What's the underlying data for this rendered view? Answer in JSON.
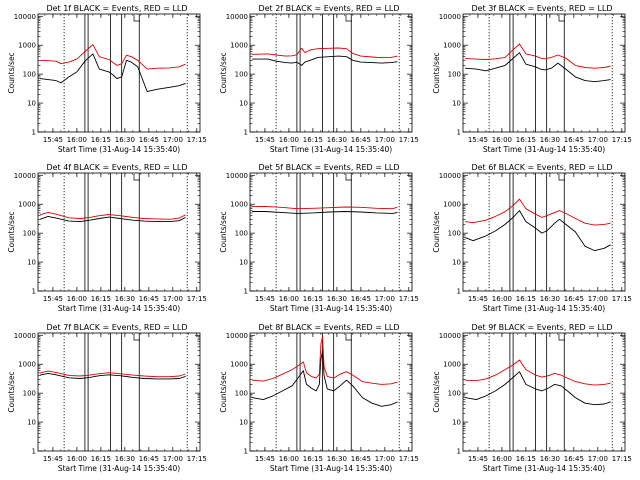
{
  "figure": {
    "ylabel": "Counts/sec",
    "xlabel": "Start Time (31-Aug-14 15:35:40)",
    "x_ticks": [
      "15:45",
      "16:00",
      "16:15",
      "16:30",
      "16:45",
      "17:00",
      "17:15"
    ],
    "y_ticks": [
      "1",
      "10",
      "100",
      "1000",
      "10000"
    ],
    "colors": {
      "events": "#000000",
      "lld": "#e00000",
      "axes": "#000000"
    }
  },
  "chart_data": [
    {
      "type": "line",
      "title": "Det 1f BLACK = Events, RED = LLD",
      "x_range": [
        "15:35:40",
        "17:17:00"
      ],
      "ylim": [
        1,
        12000
      ],
      "log_scale_y": true,
      "markers_solid": [
        "16:05",
        "16:07",
        "16:21",
        "16:28",
        "16:39"
      ],
      "markers_dotted": [
        "15:52",
        "17:09"
      ],
      "series": [
        {
          "name": "Events",
          "x": [
            "15:37",
            "15:47",
            "15:50",
            "15:55",
            "16:00",
            "16:05",
            "16:10",
            "16:14",
            "16:20",
            "16:23",
            "16:25",
            "16:28",
            "16:31",
            "16:34",
            "16:38",
            "16:44",
            "16:50",
            "16:58",
            "17:04",
            "17:08"
          ],
          "values": [
            70,
            60,
            50,
            80,
            120,
            280,
            500,
            150,
            120,
            90,
            70,
            80,
            300,
            260,
            180,
            25,
            30,
            35,
            40,
            48
          ]
        },
        {
          "name": "LLD",
          "x": [
            "15:37",
            "15:47",
            "15:50",
            "15:55",
            "16:00",
            "16:05",
            "16:10",
            "16:14",
            "16:20",
            "16:23",
            "16:25",
            "16:28",
            "16:31",
            "16:34",
            "16:38",
            "16:44",
            "16:50",
            "16:58",
            "17:04",
            "17:08"
          ],
          "values": [
            300,
            280,
            230,
            260,
            330,
            600,
            1050,
            400,
            320,
            240,
            200,
            230,
            450,
            400,
            300,
            150,
            160,
            165,
            180,
            220
          ]
        }
      ]
    },
    {
      "type": "line",
      "title": "Det 2f BLACK = Events, RED = LLD",
      "x_range": [
        "15:35:40",
        "17:17:00"
      ],
      "ylim": [
        1,
        12000
      ],
      "log_scale_y": true,
      "markers_solid": [
        "16:05",
        "16:07",
        "16:21",
        "16:28",
        "16:39"
      ],
      "markers_dotted": [
        "15:52",
        "17:09"
      ],
      "series": [
        {
          "name": "Events",
          "x": [
            "15:37",
            "15:47",
            "15:52",
            "15:58",
            "16:02",
            "16:05",
            "16:08",
            "16:10",
            "16:14",
            "16:18",
            "16:25",
            "16:31",
            "16:36",
            "16:40",
            "16:45",
            "16:52",
            "16:58",
            "17:04",
            "17:08"
          ],
          "values": [
            330,
            330,
            280,
            250,
            240,
            260,
            200,
            260,
            310,
            380,
            400,
            420,
            400,
            300,
            260,
            250,
            240,
            250,
            270
          ]
        },
        {
          "name": "LLD",
          "x": [
            "15:37",
            "15:47",
            "15:52",
            "15:58",
            "16:02",
            "16:05",
            "16:08",
            "16:10",
            "16:14",
            "16:18",
            "16:25",
            "16:31",
            "16:36",
            "16:40",
            "16:45",
            "16:52",
            "16:58",
            "17:04",
            "17:08"
          ],
          "values": [
            480,
            500,
            460,
            420,
            430,
            470,
            780,
            560,
            700,
            760,
            780,
            800,
            760,
            520,
            420,
            390,
            370,
            380,
            420
          ]
        }
      ]
    },
    {
      "type": "line",
      "title": "Det 3f BLACK = Events, RED = LLD",
      "x_range": [
        "15:35:40",
        "17:17:00"
      ],
      "ylim": [
        1,
        12000
      ],
      "log_scale_y": true,
      "markers_solid": [
        "16:05",
        "16:07",
        "16:21",
        "16:28",
        "16:39"
      ],
      "markers_dotted": [
        "15:52",
        "17:09"
      ],
      "series": [
        {
          "name": "Events",
          "x": [
            "15:37",
            "15:44",
            "15:50",
            "15:56",
            "16:02",
            "16:07",
            "16:11",
            "16:15",
            "16:21",
            "16:24",
            "16:27",
            "16:31",
            "16:35",
            "16:40",
            "16:46",
            "16:52",
            "16:58",
            "17:04",
            "17:08"
          ],
          "values": [
            160,
            150,
            130,
            160,
            200,
            350,
            550,
            220,
            180,
            150,
            140,
            160,
            240,
            150,
            80,
            60,
            55,
            60,
            65
          ]
        },
        {
          "name": "LLD",
          "x": [
            "15:37",
            "15:44",
            "15:50",
            "15:56",
            "16:02",
            "16:07",
            "16:11",
            "16:15",
            "16:21",
            "16:24",
            "16:27",
            "16:31",
            "16:35",
            "16:40",
            "16:46",
            "16:52",
            "16:58",
            "17:04",
            "17:08"
          ],
          "values": [
            350,
            330,
            320,
            340,
            380,
            700,
            1100,
            500,
            420,
            360,
            340,
            380,
            460,
            360,
            200,
            170,
            160,
            170,
            190
          ]
        }
      ]
    },
    {
      "type": "line",
      "title": "Det 4f BLACK = Events, RED = LLD",
      "x_range": [
        "15:35:40",
        "17:17:00"
      ],
      "ylim": [
        1,
        12000
      ],
      "log_scale_y": true,
      "markers_solid": [
        "16:05",
        "16:07",
        "16:21",
        "16:28",
        "16:39"
      ],
      "markers_dotted": [
        "15:52",
        "17:09"
      ],
      "series": [
        {
          "name": "Events",
          "x": [
            "15:37",
            "15:42",
            "15:47",
            "15:55",
            "16:02",
            "16:08",
            "16:14",
            "16:20",
            "16:27",
            "16:35",
            "16:42",
            "16:50",
            "16:58",
            "17:04",
            "17:08"
          ],
          "values": [
            300,
            380,
            330,
            260,
            250,
            280,
            320,
            360,
            320,
            280,
            260,
            250,
            250,
            270,
            350
          ]
        },
        {
          "name": "LLD",
          "x": [
            "15:37",
            "15:42",
            "15:47",
            "15:55",
            "16:02",
            "16:08",
            "16:14",
            "16:20",
            "16:27",
            "16:35",
            "16:42",
            "16:50",
            "16:58",
            "17:04",
            "17:08"
          ],
          "values": [
            430,
            520,
            450,
            340,
            320,
            350,
            400,
            440,
            400,
            350,
            320,
            310,
            300,
            330,
            430
          ]
        }
      ]
    },
    {
      "type": "line",
      "title": "Det 5f BLACK = Events, RED = LLD",
      "x_range": [
        "15:35:40",
        "17:17:00"
      ],
      "ylim": [
        1,
        12000
      ],
      "log_scale_y": true,
      "markers_solid": [
        "16:05",
        "16:07",
        "16:21",
        "16:28",
        "16:39"
      ],
      "markers_dotted": [
        "15:52",
        "17:09"
      ],
      "series": [
        {
          "name": "Events",
          "x": [
            "15:37",
            "15:45",
            "15:55",
            "16:05",
            "16:15",
            "16:25",
            "16:35",
            "16:45",
            "16:55",
            "17:05",
            "17:08"
          ],
          "values": [
            560,
            560,
            520,
            480,
            500,
            540,
            560,
            540,
            500,
            480,
            520
          ]
        },
        {
          "name": "LLD",
          "x": [
            "15:37",
            "15:45",
            "15:55",
            "16:05",
            "16:15",
            "16:25",
            "16:35",
            "16:45",
            "16:55",
            "17:05",
            "17:08"
          ],
          "values": [
            830,
            840,
            780,
            700,
            720,
            760,
            800,
            780,
            720,
            700,
            800
          ]
        }
      ]
    },
    {
      "type": "line",
      "title": "Det 6f BLACK = Events, RED = LLD",
      "x_range": [
        "15:35:40",
        "17:17:00"
      ],
      "ylim": [
        1,
        12000
      ],
      "log_scale_y": true,
      "markers_solid": [
        "16:05",
        "16:07",
        "16:21",
        "16:28",
        "16:39"
      ],
      "markers_dotted": [
        "15:52",
        "17:09"
      ],
      "series": [
        {
          "name": "Events",
          "x": [
            "15:37",
            "15:42",
            "15:50",
            "15:56",
            "16:02",
            "16:07",
            "16:11",
            "16:15",
            "16:21",
            "16:25",
            "16:28",
            "16:33",
            "16:36",
            "16:40",
            "16:46",
            "16:52",
            "16:58",
            "17:04",
            "17:08"
          ],
          "values": [
            70,
            55,
            80,
            120,
            200,
            350,
            600,
            250,
            150,
            100,
            120,
            220,
            300,
            200,
            110,
            35,
            25,
            30,
            40
          ]
        },
        {
          "name": "LLD",
          "x": [
            "15:37",
            "15:42",
            "15:50",
            "15:56",
            "16:02",
            "16:07",
            "16:11",
            "16:15",
            "16:21",
            "16:25",
            "16:28",
            "16:33",
            "16:36",
            "16:40",
            "16:46",
            "16:52",
            "16:58",
            "17:04",
            "17:08"
          ],
          "values": [
            250,
            230,
            280,
            380,
            550,
            900,
            1500,
            700,
            450,
            350,
            400,
            520,
            600,
            480,
            320,
            220,
            190,
            200,
            220
          ]
        }
      ]
    },
    {
      "type": "line",
      "title": "Det 7f BLACK = Events, RED = LLD",
      "x_range": [
        "15:35:40",
        "17:17:00"
      ],
      "ylim": [
        1,
        12000
      ],
      "log_scale_y": true,
      "markers_solid": [
        "16:05",
        "16:07",
        "16:21",
        "16:28",
        "16:39"
      ],
      "markers_dotted": [
        "15:52",
        "17:09"
      ],
      "series": [
        {
          "name": "Events",
          "x": [
            "15:37",
            "15:42",
            "15:47",
            "15:55",
            "16:02",
            "16:08",
            "16:14",
            "16:20",
            "16:27",
            "16:35",
            "16:42",
            "16:50",
            "16:58",
            "17:04",
            "17:08"
          ],
          "values": [
            420,
            480,
            430,
            340,
            320,
            350,
            400,
            430,
            400,
            350,
            320,
            310,
            310,
            320,
            380
          ]
        },
        {
          "name": "LLD",
          "x": [
            "15:37",
            "15:42",
            "15:47",
            "15:55",
            "16:02",
            "16:08",
            "16:14",
            "16:20",
            "16:27",
            "16:35",
            "16:42",
            "16:50",
            "16:58",
            "17:04",
            "17:08"
          ],
          "values": [
            500,
            580,
            520,
            410,
            390,
            420,
            470,
            510,
            470,
            420,
            390,
            370,
            370,
            390,
            460
          ]
        }
      ]
    },
    {
      "type": "line",
      "title": "Det 8f BLACK = Events, RED = LLD",
      "x_range": [
        "15:35:40",
        "17:17:00"
      ],
      "ylim": [
        1,
        12000
      ],
      "log_scale_y": true,
      "markers_solid": [
        "16:05",
        "16:07",
        "16:21",
        "16:28",
        "16:39"
      ],
      "markers_dotted": [
        "15:52",
        "17:09"
      ],
      "series": [
        {
          "name": "Events",
          "x": [
            "15:37",
            "15:44",
            "15:50",
            "15:56",
            "16:02",
            "16:06",
            "16:09",
            "16:11",
            "16:14",
            "16:17",
            "16:19",
            "16:20",
            "16:21",
            "16:22",
            "16:24",
            "16:28",
            "16:32",
            "16:36",
            "16:40",
            "16:46",
            "16:52",
            "16:58",
            "17:04",
            "17:08"
          ],
          "values": [
            70,
            60,
            80,
            120,
            180,
            350,
            600,
            200,
            150,
            120,
            200,
            1500,
            2800,
            400,
            140,
            120,
            180,
            280,
            180,
            70,
            45,
            35,
            40,
            50
          ]
        },
        {
          "name": "LLD",
          "x": [
            "15:37",
            "15:44",
            "15:50",
            "15:56",
            "16:02",
            "16:06",
            "16:09",
            "16:11",
            "16:14",
            "16:17",
            "16:19",
            "16:20",
            "16:21",
            "16:22",
            "16:24",
            "16:28",
            "16:32",
            "16:36",
            "16:40",
            "16:46",
            "16:52",
            "16:58",
            "17:04",
            "17:08"
          ],
          "values": [
            280,
            260,
            320,
            450,
            650,
            900,
            1200,
            500,
            380,
            330,
            450,
            5000,
            9000,
            800,
            380,
            330,
            450,
            550,
            420,
            250,
            220,
            200,
            210,
            240
          ]
        }
      ]
    },
    {
      "type": "line",
      "title": "Det 9f BLACK = Events, RED = LLD",
      "x_range": [
        "15:35:40",
        "17:17:00"
      ],
      "ylim": [
        1,
        12000
      ],
      "log_scale_y": true,
      "markers_solid": [
        "16:05",
        "16:07",
        "16:21",
        "16:28",
        "16:39"
      ],
      "markers_dotted": [
        "15:52",
        "17:09"
      ],
      "series": [
        {
          "name": "Events",
          "x": [
            "15:37",
            "15:44",
            "15:50",
            "15:56",
            "16:02",
            "16:07",
            "16:11",
            "16:15",
            "16:21",
            "16:25",
            "16:29",
            "16:33",
            "16:37",
            "16:41",
            "16:46",
            "16:52",
            "16:58",
            "17:04",
            "17:08"
          ],
          "values": [
            70,
            60,
            80,
            120,
            200,
            350,
            550,
            200,
            140,
            120,
            150,
            200,
            180,
            120,
            70,
            45,
            40,
            42,
            50
          ]
        },
        {
          "name": "LLD",
          "x": [
            "15:37",
            "15:44",
            "15:50",
            "15:56",
            "16:02",
            "16:07",
            "16:11",
            "16:15",
            "16:21",
            "16:25",
            "16:29",
            "16:33",
            "16:37",
            "16:41",
            "16:46",
            "16:52",
            "16:58",
            "17:04",
            "17:08"
          ],
          "values": [
            280,
            270,
            310,
            420,
            650,
            950,
            1400,
            650,
            420,
            360,
            400,
            480,
            420,
            330,
            250,
            210,
            190,
            200,
            220
          ]
        }
      ]
    }
  ]
}
